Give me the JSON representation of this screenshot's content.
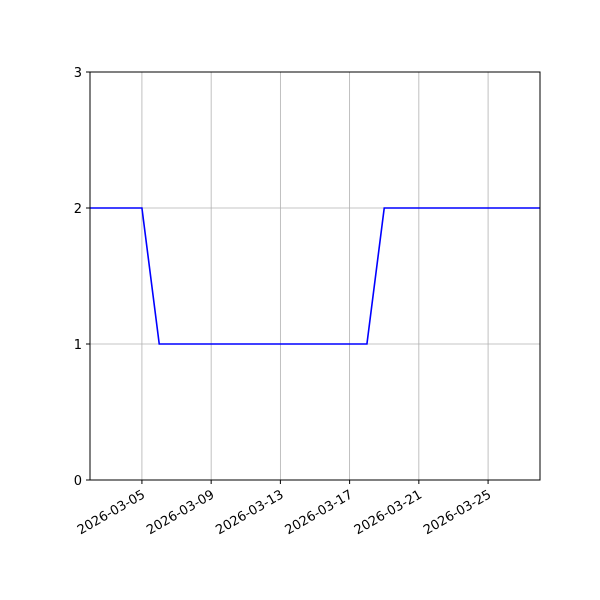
{
  "chart_data": {
    "type": "line",
    "title": "",
    "xlabel": "",
    "ylabel": "",
    "x": [
      "2026-03-02",
      "2026-03-03",
      "2026-03-04",
      "2026-03-05",
      "2026-03-06",
      "2026-03-07",
      "2026-03-08",
      "2026-03-09",
      "2026-03-10",
      "2026-03-11",
      "2026-03-12",
      "2026-03-13",
      "2026-03-14",
      "2026-03-15",
      "2026-03-16",
      "2026-03-17",
      "2026-03-18",
      "2026-03-19",
      "2026-03-20",
      "2026-03-21",
      "2026-03-22",
      "2026-03-23",
      "2026-03-24",
      "2026-03-25",
      "2026-03-26",
      "2026-03-27",
      "2026-03-28"
    ],
    "series": [
      {
        "values": [
          2,
          2,
          2,
          2,
          1,
          1,
          1,
          1,
          1,
          1,
          1,
          1,
          1,
          1,
          1,
          1,
          1,
          2,
          2,
          2,
          2,
          2,
          2,
          2,
          2,
          2,
          2
        ],
        "color": "#0000ff"
      }
    ],
    "xlim": [
      "2026-03-02",
      "2026-03-28"
    ],
    "ylim": [
      0,
      3
    ],
    "xticks": [
      "2026-03-05",
      "2026-03-09",
      "2026-03-13",
      "2026-03-17",
      "2026-03-21",
      "2026-03-25"
    ],
    "yticks": [
      "0",
      "1",
      "2",
      "3"
    ],
    "grid": true
  }
}
